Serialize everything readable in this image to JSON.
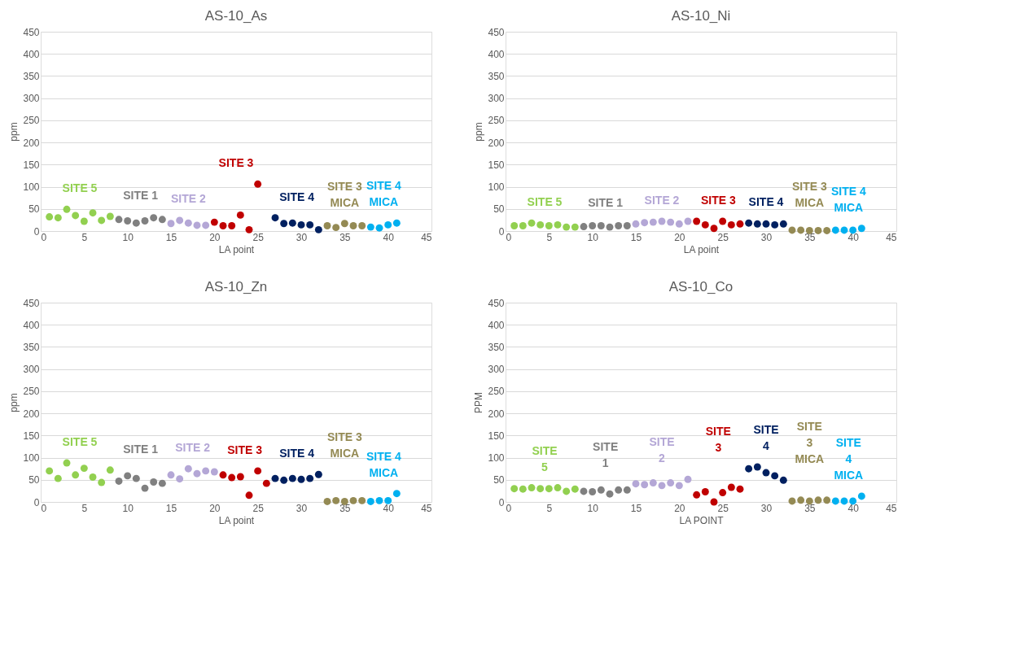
{
  "chart_data": [
    {
      "type": "scatter",
      "title": "AS-10_As",
      "xlabel": "LA point",
      "ylabel": "ppm",
      "xlim": [
        0,
        45
      ],
      "xticks": [
        0,
        5,
        10,
        15,
        20,
        25,
        30,
        35,
        40,
        45
      ],
      "ylim": [
        0,
        450
      ],
      "yticks": [
        0,
        50,
        100,
        150,
        200,
        250,
        300,
        350,
        400,
        450
      ],
      "grid": "y",
      "legend": false,
      "marker": "circle",
      "series": [
        {
          "name": "SITE 5",
          "color": "#92d050",
          "x": [
            1,
            2,
            3,
            4,
            5,
            6,
            7,
            8
          ],
          "values": [
            32,
            30,
            49,
            35,
            22,
            41,
            24,
            33
          ]
        },
        {
          "name": "SITE 1",
          "color": "#808080",
          "x": [
            9,
            10,
            11,
            12,
            13,
            14
          ],
          "values": [
            26,
            23,
            18,
            23,
            30,
            26
          ]
        },
        {
          "name": "SITE 2",
          "color": "#b4a7d6",
          "x": [
            15,
            16,
            17,
            18,
            19
          ],
          "values": [
            17,
            24,
            18,
            13,
            13
          ]
        },
        {
          "name": "SITE 3",
          "color": "#c00000",
          "x": [
            20,
            21,
            22,
            23,
            24,
            25
          ],
          "values": [
            20,
            12,
            12,
            36,
            3,
            106
          ]
        },
        {
          "name": "SITE 4",
          "color": "#002060",
          "x": [
            27,
            28,
            29,
            30,
            31,
            32
          ],
          "values": [
            30,
            17,
            18,
            14,
            14,
            3
          ]
        },
        {
          "name": "SITE 3 MICA",
          "color": "#948a54",
          "x": [
            33,
            34,
            35,
            36,
            37
          ],
          "values": [
            12,
            8,
            17,
            12,
            12
          ]
        },
        {
          "name": "SITE 4 MICA",
          "color": "#00b0f0",
          "x": [
            38,
            39,
            40,
            41
          ],
          "values": [
            9,
            7,
            14,
            18
          ]
        }
      ]
    },
    {
      "type": "scatter",
      "title": "AS-10_Ni",
      "xlabel": "LA point",
      "ylabel": "ppm",
      "xlim": [
        0,
        45
      ],
      "xticks": [
        0,
        5,
        10,
        15,
        20,
        25,
        30,
        35,
        40,
        45
      ],
      "ylim": [
        0,
        450
      ],
      "yticks": [
        0,
        50,
        100,
        150,
        200,
        250,
        300,
        350,
        400,
        450
      ],
      "grid": "y",
      "legend": false,
      "marker": "circle",
      "series": [
        {
          "name": "SITE 5",
          "color": "#92d050",
          "x": [
            1,
            2,
            3,
            4,
            5,
            6,
            7,
            8
          ],
          "values": [
            12,
            12,
            18,
            14,
            12,
            14,
            9,
            9
          ]
        },
        {
          "name": "SITE 1",
          "color": "#808080",
          "x": [
            9,
            10,
            11,
            12,
            13,
            14
          ],
          "values": [
            10,
            12,
            12,
            9,
            12,
            12
          ]
        },
        {
          "name": "SITE 2",
          "color": "#b4a7d6",
          "x": [
            15,
            16,
            17,
            18,
            19,
            20,
            21
          ],
          "values": [
            16,
            19,
            20,
            22,
            20,
            16,
            22
          ]
        },
        {
          "name": "SITE 3",
          "color": "#c00000",
          "x": [
            22,
            23,
            24,
            25,
            26,
            27
          ],
          "values": [
            22,
            14,
            6,
            22,
            14,
            16
          ]
        },
        {
          "name": "SITE 4",
          "color": "#002060",
          "x": [
            28,
            29,
            30,
            31,
            32
          ],
          "values": [
            18,
            16,
            16,
            14,
            16
          ]
        },
        {
          "name": "SITE 3 MICA",
          "color": "#948a54",
          "x": [
            33,
            34,
            35,
            36,
            37
          ],
          "values": [
            2,
            2,
            1,
            1,
            1
          ]
        },
        {
          "name": "SITE 4 MICA",
          "color": "#00b0f0",
          "x": [
            38,
            39,
            40,
            41
          ],
          "values": [
            2,
            2,
            2,
            6
          ]
        }
      ]
    },
    {
      "type": "scatter",
      "title": "AS-10_Zn",
      "xlabel": "LA point",
      "ylabel": "ppm",
      "xlim": [
        0,
        45
      ],
      "xticks": [
        0,
        5,
        10,
        15,
        20,
        25,
        30,
        35,
        40,
        45
      ],
      "ylim": [
        0,
        450
      ],
      "yticks": [
        0,
        50,
        100,
        150,
        200,
        250,
        300,
        350,
        400,
        450
      ],
      "grid": "y",
      "legend": false,
      "marker": "circle",
      "series": [
        {
          "name": "SITE 5",
          "color": "#92d050",
          "x": [
            1,
            2,
            3,
            4,
            5,
            6,
            7,
            8
          ],
          "values": [
            70,
            53,
            88,
            61,
            76,
            56,
            44,
            72
          ]
        },
        {
          "name": "SITE 1",
          "color": "#808080",
          "x": [
            9,
            10,
            11,
            12,
            13,
            14
          ],
          "values": [
            47,
            59,
            53,
            31,
            45,
            42
          ]
        },
        {
          "name": "SITE 2",
          "color": "#b4a7d6",
          "x": [
            15,
            16,
            17,
            18,
            19,
            20
          ],
          "values": [
            61,
            52,
            75,
            64,
            70,
            68
          ]
        },
        {
          "name": "SITE 3",
          "color": "#c00000",
          "x": [
            21,
            22,
            23,
            24,
            25,
            26
          ],
          "values": [
            61,
            55,
            57,
            15,
            70,
            42
          ]
        },
        {
          "name": "SITE 4",
          "color": "#002060",
          "x": [
            27,
            28,
            29,
            30,
            31,
            32
          ],
          "values": [
            53,
            49,
            53,
            51,
            53,
            62
          ]
        },
        {
          "name": "SITE 3 MICA",
          "color": "#948a54",
          "x": [
            33,
            34,
            35,
            36,
            37
          ],
          "values": [
            1,
            3,
            1,
            3,
            3
          ]
        },
        {
          "name": "SITE 4 MICA",
          "color": "#00b0f0",
          "x": [
            38,
            39,
            40,
            41
          ],
          "values": [
            1,
            3,
            3,
            19
          ]
        }
      ]
    },
    {
      "type": "scatter",
      "title": "AS-10_Co",
      "xlabel": "LA POINT",
      "ylabel": "PPM",
      "xlim": [
        0,
        45
      ],
      "xticks": [
        0,
        5,
        10,
        15,
        20,
        25,
        30,
        35,
        40,
        45
      ],
      "ylim": [
        0,
        450
      ],
      "yticks": [
        0,
        50,
        100,
        150,
        200,
        250,
        300,
        350,
        400,
        450
      ],
      "grid": "y",
      "legend": false,
      "marker": "circle",
      "series": [
        {
          "name": "SITE 5",
          "color": "#92d050",
          "x": [
            1,
            2,
            3,
            4,
            5,
            6,
            7,
            8
          ],
          "values": [
            30,
            29,
            32,
            30,
            30,
            32,
            24,
            29
          ]
        },
        {
          "name": "SITE 1",
          "color": "#808080",
          "x": [
            9,
            10,
            11,
            12,
            13,
            14
          ],
          "values": [
            24,
            23,
            27,
            18,
            27,
            27
          ]
        },
        {
          "name": "SITE 2",
          "color": "#b4a7d6",
          "x": [
            15,
            16,
            17,
            18,
            19,
            20,
            21
          ],
          "values": [
            41,
            39,
            43,
            37,
            43,
            37,
            51
          ]
        },
        {
          "name": "SITE 3",
          "color": "#c00000",
          "x": [
            22,
            23,
            24,
            25,
            26,
            27
          ],
          "values": [
            16,
            23,
            0,
            21,
            33,
            29
          ]
        },
        {
          "name": "SITE 4",
          "color": "#002060",
          "x": [
            28,
            29,
            30,
            31,
            32
          ],
          "values": [
            75,
            79,
            66,
            59,
            49
          ]
        },
        {
          "name": "SITE 3 MICA",
          "color": "#948a54",
          "x": [
            33,
            34,
            35,
            36,
            37
          ],
          "values": [
            2,
            4,
            2,
            4,
            4
          ]
        },
        {
          "name": "SITE 4 MICA",
          "color": "#00b0f0",
          "x": [
            38,
            39,
            40,
            41
          ],
          "values": [
            2,
            2,
            2,
            13
          ]
        }
      ]
    }
  ]
}
